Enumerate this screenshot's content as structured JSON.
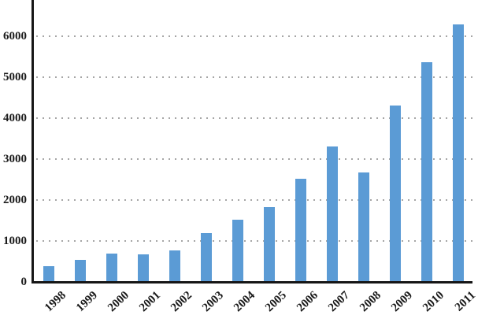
{
  "chart_data": {
    "type": "bar",
    "title": "",
    "xlabel": "",
    "ylabel": "",
    "categories": [
      "1998",
      "1999",
      "2000",
      "2001",
      "2002",
      "2003",
      "2004",
      "2005",
      "2006",
      "2007",
      "2008",
      "2009",
      "2010",
      "2011"
    ],
    "values": [
      380,
      530,
      700,
      670,
      760,
      1200,
      1520,
      1830,
      2520,
      3300,
      2670,
      4310,
      5370,
      6290
    ],
    "y_ticks": [
      0,
      1000,
      2000,
      3000,
      4000,
      5000,
      6000
    ],
    "ylim": [
      0,
      6900
    ],
    "grid": "horizontal-dotted",
    "legend_position": "none",
    "colors": {
      "bar_fill": "#5B9BD5",
      "gridline": "#A6A6A6",
      "axis": "#161616",
      "tick_label": "#1A1A1A",
      "background": "#FFFFFF"
    }
  }
}
